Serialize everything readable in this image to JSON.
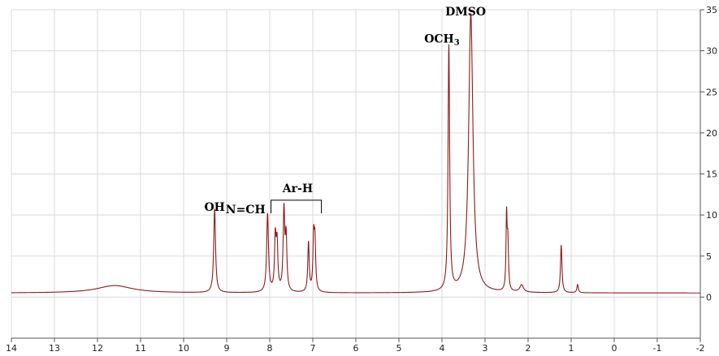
{
  "chart_data": {
    "type": "line",
    "title": "",
    "xlabel": "",
    "ylabel": "",
    "xlim": [
      14,
      -2
    ],
    "ylim": [
      -5,
      35
    ],
    "x_reversed": true,
    "y_axis_side": "right",
    "grid": true,
    "line_color": "#8b1a1a",
    "grid_color": "#d9d9d9",
    "x_ticks": [
      14,
      13,
      12,
      11,
      10,
      9,
      8,
      7,
      6,
      5,
      4,
      3,
      2,
      1,
      0,
      -1,
      -2
    ],
    "x_tick_labels": [
      "14",
      "13",
      "12",
      "11",
      "10",
      "9",
      "8",
      "7",
      "6",
      "5",
      "4",
      "3",
      "2",
      "1",
      "0",
      "-1",
      "-2"
    ],
    "y_ticks": [
      0,
      5,
      10,
      15,
      20,
      25,
      30,
      35
    ],
    "y_tick_labels": [
      "0",
      "5",
      "10",
      "15",
      "20",
      "25",
      "30",
      "35"
    ],
    "baseline": 0.5,
    "peaks": [
      {
        "x": 11.6,
        "y": 0.9,
        "width": 0.5,
        "kind": "broad"
      },
      {
        "x": 9.28,
        "y": 10.2,
        "width": 0.025,
        "kind": "sharp"
      },
      {
        "x": 8.05,
        "y": 9.5,
        "width": 0.025,
        "kind": "sharp"
      },
      {
        "x": 7.87,
        "y": 6.3,
        "width": 0.022,
        "kind": "sharp"
      },
      {
        "x": 7.83,
        "y": 5.5,
        "width": 0.022,
        "kind": "sharp"
      },
      {
        "x": 7.67,
        "y": 9.7,
        "width": 0.022,
        "kind": "sharp"
      },
      {
        "x": 7.62,
        "y": 6.3,
        "width": 0.022,
        "kind": "sharp"
      },
      {
        "x": 7.1,
        "y": 6.0,
        "width": 0.02,
        "kind": "sharp"
      },
      {
        "x": 6.98,
        "y": 6.3,
        "width": 0.02,
        "kind": "sharp"
      },
      {
        "x": 6.95,
        "y": 5.7,
        "width": 0.02,
        "kind": "sharp"
      },
      {
        "x": 3.84,
        "y": 29.8,
        "width": 0.022,
        "kind": "sharp"
      },
      {
        "x": 3.33,
        "y": 34.0,
        "width": 0.06,
        "kind": "sharp"
      },
      {
        "x": 2.5,
        "y": 8.8,
        "width": 0.015,
        "kind": "sharp"
      },
      {
        "x": 2.47,
        "y": 5.8,
        "width": 0.018,
        "kind": "sharp"
      },
      {
        "x": 2.15,
        "y": 0.9,
        "width": 0.05,
        "kind": "small"
      },
      {
        "x": 1.23,
        "y": 5.8,
        "width": 0.02,
        "kind": "sharp"
      },
      {
        "x": 0.85,
        "y": 1.0,
        "width": 0.02,
        "kind": "small"
      }
    ],
    "annotations": {
      "oh": {
        "text": "OH",
        "x": 9.28
      },
      "nch": {
        "text": "N=CH",
        "x": 8.1
      },
      "arh": {
        "text": "Ar-H",
        "x": 7.35,
        "bracket_from": 7.97,
        "bracket_to": 6.8
      },
      "och3": {
        "text": "OCH",
        "subscript": "3",
        "x": 4.0
      },
      "dmso": {
        "text": "DMSO",
        "x": 3.45
      }
    }
  }
}
